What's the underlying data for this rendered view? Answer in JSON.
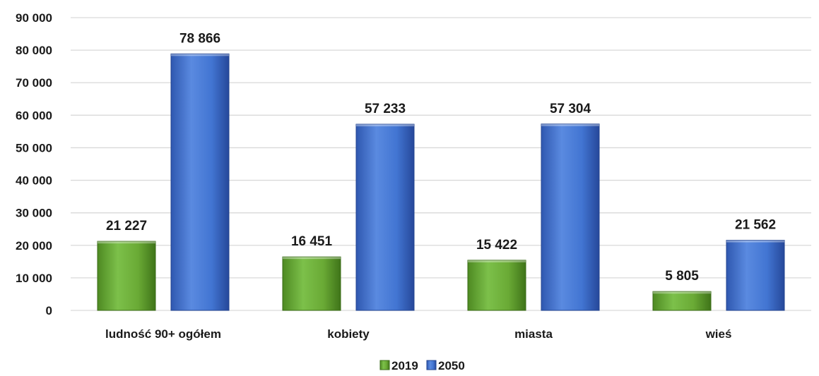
{
  "chart_data": {
    "type": "bar",
    "title": "",
    "xlabel": "",
    "ylabel": "",
    "categories": [
      "ludność 90+ ogółem",
      "kobiety",
      "miasta",
      "wieś"
    ],
    "series": [
      {
        "name": "2019",
        "values": [
          21227,
          16451,
          15422,
          5805
        ],
        "value_labels": [
          "21 227",
          "16 451",
          "15 422",
          "5 805"
        ],
        "color": "#6aaa35"
      },
      {
        "name": "2050",
        "values": [
          78866,
          57233,
          57304,
          21562
        ],
        "value_labels": [
          "78 866",
          "57 233",
          "57 304",
          "21 562"
        ],
        "color": "#3e6fce"
      }
    ],
    "ylim": [
      0,
      90000
    ],
    "yticks": [
      0,
      10000,
      20000,
      30000,
      40000,
      50000,
      60000,
      70000,
      80000,
      90000
    ],
    "ytick_labels": [
      "0",
      "10 000",
      "20 000",
      "30 000",
      "40 000",
      "50 000",
      "60 000",
      "70 000",
      "80 000",
      "90 000"
    ],
    "grid": true,
    "legend_position": "bottom"
  }
}
